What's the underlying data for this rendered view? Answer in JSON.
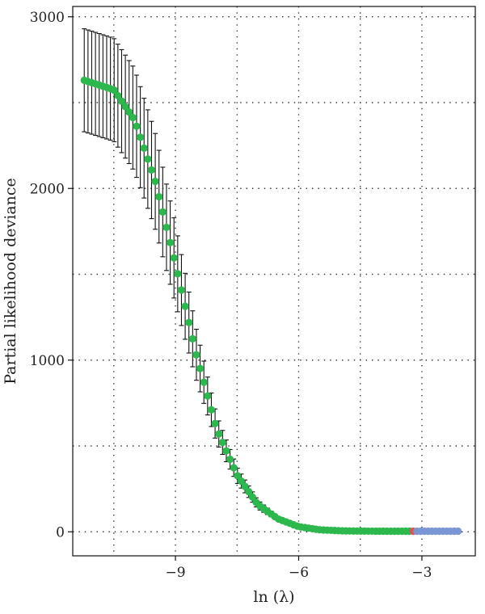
{
  "chart_data": {
    "type": "scatter",
    "xlabel": "ln (λ)",
    "ylabel": "Partial likelihood deviance",
    "xlim": [
      -11.5,
      -1.7
    ],
    "ylim": [
      -140,
      3060
    ],
    "x_ticks": [
      {
        "value": -9,
        "label": "−9"
      },
      {
        "value": -6,
        "label": "−6"
      },
      {
        "value": -3,
        "label": "−3"
      }
    ],
    "y_ticks": [
      {
        "value": 0,
        "label": "0"
      },
      {
        "value": 1000,
        "label": "1000"
      },
      {
        "value": 2000,
        "label": "2000"
      },
      {
        "value": 3000,
        "label": "3000"
      }
    ],
    "x_grid": [
      -10.5,
      -9,
      -7.5,
      -6,
      -4.5,
      -3
    ],
    "y_grid": [
      0,
      500,
      1000,
      1500,
      2000,
      2500,
      3000
    ],
    "grid": true,
    "x_range": [
      -11.22,
      -2.12
    ],
    "point_count": 101,
    "colors": {
      "green": "#2db84d",
      "red": "#e05252",
      "blue": "#7b96d4"
    },
    "key_points": [
      {
        "x": -11.22,
        "y": 2630,
        "err": 300
      },
      {
        "x": -10.5,
        "y": 2575,
        "err": 300
      },
      {
        "x": -10.0,
        "y": 2400,
        "err": 300
      },
      {
        "x": -9.5,
        "y": 2050,
        "err": 280
      },
      {
        "x": -9.0,
        "y": 1560,
        "err": 230
      },
      {
        "x": -8.5,
        "y": 1040,
        "err": 150
      },
      {
        "x": -8.0,
        "y": 600,
        "err": 80
      },
      {
        "x": -7.5,
        "y": 330,
        "err": 45
      },
      {
        "x": -7.0,
        "y": 160,
        "err": 25
      },
      {
        "x": -6.5,
        "y": 75,
        "err": 12
      },
      {
        "x": -6.0,
        "y": 30,
        "err": 6
      },
      {
        "x": -5.5,
        "y": 12,
        "err": 3
      },
      {
        "x": -5.0,
        "y": 6,
        "err": 2
      },
      {
        "x": -4.5,
        "y": 4,
        "err": 1
      },
      {
        "x": -3.5,
        "y": 3.5,
        "err": 1
      },
      {
        "x": -2.12,
        "y": 3.5,
        "err": 1
      }
    ],
    "segments": [
      {
        "color": "green",
        "x_from": -11.22,
        "x_to": -3.3
      },
      {
        "color": "red",
        "x_from": -3.3,
        "x_to": -3.15
      },
      {
        "color": "blue",
        "x_from": -3.15,
        "x_to": -2.12
      }
    ]
  }
}
